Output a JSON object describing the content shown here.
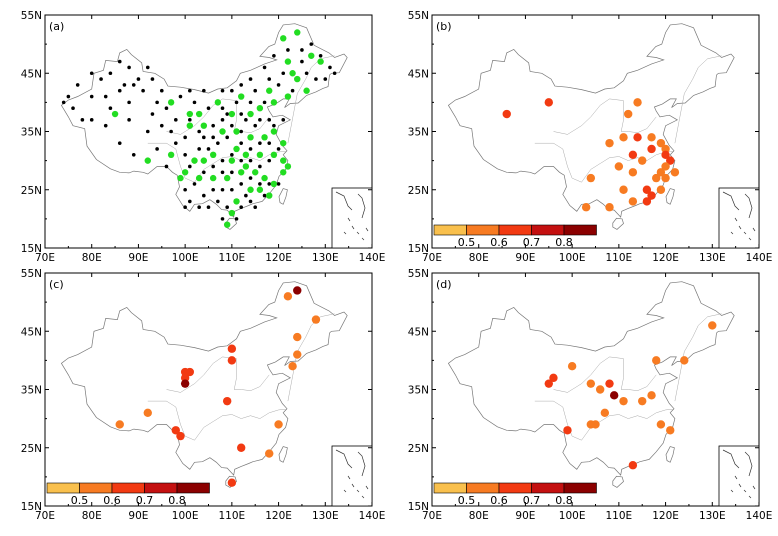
{
  "axes": {
    "lon_labels": [
      "70E",
      "80E",
      "90E",
      "100E",
      "110E",
      "120E",
      "130E",
      "140E"
    ],
    "lat_labels": [
      "15N",
      "25N",
      "35N",
      "45N",
      "55N"
    ],
    "lon_values": [
      70,
      80,
      90,
      100,
      110,
      120,
      130,
      140
    ],
    "lat_values": [
      15,
      25,
      35,
      45,
      55
    ],
    "lon_range": [
      70,
      140
    ],
    "lat_range": [
      15,
      55
    ]
  },
  "colors": {
    "station_black": "#000000",
    "station_green": "#22dd22",
    "bins": [
      "#f9c04d",
      "#f77b22",
      "#f23a12",
      "#c41010",
      "#8b0000"
    ],
    "outline": "#777777"
  },
  "colorbar": {
    "labels": [
      "0.5",
      "0.6",
      "0.7",
      "0.8"
    ],
    "thresholds": [
      0.5,
      0.6,
      0.7,
      0.8
    ]
  },
  "panels": [
    {
      "label": "(a)",
      "green_stations": [
        [
          124,
          52
        ],
        [
          121,
          51
        ],
        [
          127,
          48
        ],
        [
          129,
          47
        ],
        [
          122,
          47
        ],
        [
          123,
          45
        ],
        [
          124,
          44
        ],
        [
          126,
          42
        ],
        [
          122,
          41
        ],
        [
          119,
          40
        ],
        [
          112,
          41
        ],
        [
          107,
          40
        ],
        [
          110,
          38
        ],
        [
          114,
          38
        ],
        [
          116,
          39
        ],
        [
          118,
          42
        ],
        [
          103,
          38
        ],
        [
          101,
          38
        ],
        [
          97,
          40
        ],
        [
          104,
          36
        ],
        [
          101,
          36
        ],
        [
          108,
          35
        ],
        [
          111,
          35
        ],
        [
          114,
          34
        ],
        [
          117,
          34
        ],
        [
          119,
          35
        ],
        [
          121,
          33
        ],
        [
          119,
          31
        ],
        [
          116,
          31
        ],
        [
          113,
          31
        ],
        [
          111,
          32
        ],
        [
          106,
          31
        ],
        [
          104,
          30
        ],
        [
          102,
          30
        ],
        [
          100,
          28
        ],
        [
          99,
          27
        ],
        [
          103,
          27
        ],
        [
          106,
          27
        ],
        [
          109,
          27
        ],
        [
          112,
          28
        ],
        [
          115,
          28
        ],
        [
          117,
          27
        ],
        [
          119,
          26
        ],
        [
          121,
          28
        ],
        [
          122,
          29
        ],
        [
          121,
          30
        ],
        [
          114,
          25
        ],
        [
          116,
          25
        ],
        [
          118,
          24
        ],
        [
          111,
          23
        ],
        [
          110,
          21
        ],
        [
          109,
          19
        ],
        [
          85,
          38
        ],
        [
          92,
          30
        ],
        [
          97,
          31
        ],
        [
          113,
          29
        ],
        [
          110,
          30
        ]
      ],
      "black_stations": [
        [
          74,
          40
        ],
        [
          76,
          39
        ],
        [
          78,
          37
        ],
        [
          80,
          41
        ],
        [
          82,
          44
        ],
        [
          84,
          45
        ],
        [
          86,
          47
        ],
        [
          88,
          46
        ],
        [
          87,
          43
        ],
        [
          89,
          43
        ],
        [
          91,
          42
        ],
        [
          93,
          44
        ],
        [
          95,
          42
        ],
        [
          97,
          40
        ],
        [
          80,
          37
        ],
        [
          83,
          36
        ],
        [
          88,
          37
        ],
        [
          93,
          38
        ],
        [
          98,
          37
        ],
        [
          101,
          37
        ],
        [
          103,
          35
        ],
        [
          106,
          34
        ],
        [
          109,
          34
        ],
        [
          112,
          35
        ],
        [
          115,
          36
        ],
        [
          118,
          37
        ],
        [
          121,
          37
        ],
        [
          117,
          40
        ],
        [
          114,
          40
        ],
        [
          111,
          40
        ],
        [
          108,
          39
        ],
        [
          105,
          39
        ],
        [
          102,
          40
        ],
        [
          99,
          41
        ],
        [
          96,
          39
        ],
        [
          120,
          43
        ],
        [
          123,
          42
        ],
        [
          126,
          45
        ],
        [
          128,
          44
        ],
        [
          131,
          46
        ],
        [
          132,
          45
        ],
        [
          127,
          50
        ],
        [
          125,
          49
        ],
        [
          122,
          49
        ],
        [
          119,
          48
        ],
        [
          117,
          46
        ],
        [
          114,
          44
        ],
        [
          112,
          43
        ],
        [
          110,
          42
        ],
        [
          108,
          42
        ],
        [
          104,
          42
        ],
        [
          101,
          42
        ],
        [
          86,
          33
        ],
        [
          89,
          31
        ],
        [
          94,
          32
        ],
        [
          96,
          29
        ],
        [
          98,
          33
        ],
        [
          100,
          31
        ],
        [
          101,
          29
        ],
        [
          103,
          32
        ],
        [
          105,
          32
        ],
        [
          107,
          33
        ],
        [
          108,
          30
        ],
        [
          110,
          31
        ],
        [
          112,
          33
        ],
        [
          114,
          32
        ],
        [
          116,
          33
        ],
        [
          118,
          33
        ],
        [
          120,
          32
        ],
        [
          118,
          30
        ],
        [
          116,
          29
        ],
        [
          114,
          30
        ],
        [
          112,
          30
        ],
        [
          110,
          28
        ],
        [
          108,
          28
        ],
        [
          106,
          29
        ],
        [
          104,
          28
        ],
        [
          102,
          26
        ],
        [
          100,
          25
        ],
        [
          101,
          23
        ],
        [
          104,
          24
        ],
        [
          106,
          25
        ],
        [
          108,
          25
        ],
        [
          110,
          25
        ],
        [
          112,
          26
        ],
        [
          114,
          27
        ],
        [
          116,
          26
        ],
        [
          118,
          26
        ],
        [
          120,
          26
        ],
        [
          117,
          24
        ],
        [
          114,
          23
        ],
        [
          112,
          22
        ],
        [
          109,
          22
        ],
        [
          107,
          23
        ],
        [
          105,
          22
        ],
        [
          103,
          22
        ],
        [
          100,
          22
        ],
        [
          111,
          20
        ],
        [
          108,
          20
        ],
        [
          113,
          24
        ],
        [
          115,
          22
        ],
        [
          106,
          36
        ],
        [
          108,
          37
        ],
        [
          110,
          36
        ],
        [
          113,
          37
        ],
        [
          116,
          37
        ],
        [
          119,
          36
        ],
        [
          104,
          34
        ],
        [
          100,
          34
        ],
        [
          97,
          35
        ],
        [
          95,
          36
        ],
        [
          92,
          35
        ],
        [
          84,
          39
        ],
        [
          86,
          42
        ],
        [
          90,
          44
        ],
        [
          92,
          46
        ],
        [
          80,
          45
        ],
        [
          77,
          43
        ],
        [
          75,
          41
        ],
        [
          83,
          41
        ],
        [
          88,
          40
        ],
        [
          94,
          40
        ],
        [
          129,
          48
        ],
        [
          130,
          44
        ],
        [
          125,
          47
        ],
        [
          121,
          45
        ],
        [
          118,
          44
        ],
        [
          115,
          42
        ],
        [
          112,
          38
        ],
        [
          109,
          38
        ]
      ]
    },
    {
      "label": "(b)",
      "stations": [
        [
          86,
          38,
          0.65
        ],
        [
          95,
          40,
          0.63
        ],
        [
          112,
          38,
          0.52
        ],
        [
          114,
          40,
          0.5
        ],
        [
          108,
          33,
          0.5
        ],
        [
          111,
          34,
          0.55
        ],
        [
          114,
          34,
          0.62
        ],
        [
          117,
          34,
          0.52
        ],
        [
          119,
          33,
          0.55
        ],
        [
          113,
          31,
          0.63
        ],
        [
          115,
          30,
          0.52
        ],
        [
          117,
          32,
          0.6
        ],
        [
          120,
          32,
          0.55
        ],
        [
          120,
          31,
          0.62
        ],
        [
          121,
          30,
          0.6
        ],
        [
          120,
          29,
          0.58
        ],
        [
          122,
          28,
          0.5
        ],
        [
          119,
          28,
          0.52
        ],
        [
          110,
          29,
          0.5
        ],
        [
          113,
          28,
          0.55
        ],
        [
          118,
          27,
          0.52
        ],
        [
          120,
          27,
          0.52
        ],
        [
          116,
          25,
          0.63
        ],
        [
          117,
          24,
          0.65
        ],
        [
          119,
          25,
          0.55
        ],
        [
          111,
          25,
          0.52
        ],
        [
          113,
          23,
          0.55
        ],
        [
          116,
          23,
          0.67
        ],
        [
          104,
          27,
          0.55
        ],
        [
          108,
          22,
          0.52
        ],
        [
          103,
          22,
          0.52
        ]
      ]
    },
    {
      "label": "(c)",
      "stations": [
        [
          124,
          52,
          0.85
        ],
        [
          122,
          51,
          0.52
        ],
        [
          128,
          47,
          0.52
        ],
        [
          124,
          44,
          0.52
        ],
        [
          124,
          41,
          0.52
        ],
        [
          123,
          39,
          0.55
        ],
        [
          110,
          42,
          0.62
        ],
        [
          110,
          40,
          0.62
        ],
        [
          100,
          38,
          0.65
        ],
        [
          101,
          38,
          0.62
        ],
        [
          100,
          37,
          0.65
        ],
        [
          100,
          36,
          0.85
        ],
        [
          109,
          33,
          0.67
        ],
        [
          92,
          31,
          0.52
        ],
        [
          86,
          29,
          0.52
        ],
        [
          98,
          28,
          0.6
        ],
        [
          99,
          27,
          0.63
        ],
        [
          120,
          29,
          0.52
        ],
        [
          118,
          24,
          0.52
        ],
        [
          112,
          25,
          0.6
        ],
        [
          110,
          19,
          0.62
        ]
      ]
    },
    {
      "label": "(d)",
      "stations": [
        [
          96,
          37,
          0.6
        ],
        [
          95,
          36,
          0.62
        ],
        [
          100,
          39,
          0.52
        ],
        [
          104,
          36,
          0.52
        ],
        [
          106,
          35,
          0.52
        ],
        [
          108,
          36,
          0.65
        ],
        [
          109,
          34,
          0.85
        ],
        [
          111,
          33,
          0.52
        ],
        [
          107,
          31,
          0.52
        ],
        [
          104,
          29,
          0.52
        ],
        [
          105,
          29,
          0.52
        ],
        [
          99,
          28,
          0.65
        ],
        [
          115,
          33,
          0.52
        ],
        [
          117,
          34,
          0.5
        ],
        [
          118,
          40,
          0.52
        ],
        [
          124,
          40,
          0.52
        ],
        [
          130,
          46,
          0.52
        ],
        [
          119,
          29,
          0.52
        ],
        [
          121,
          28,
          0.52
        ],
        [
          113,
          22,
          0.63
        ]
      ]
    }
  ]
}
